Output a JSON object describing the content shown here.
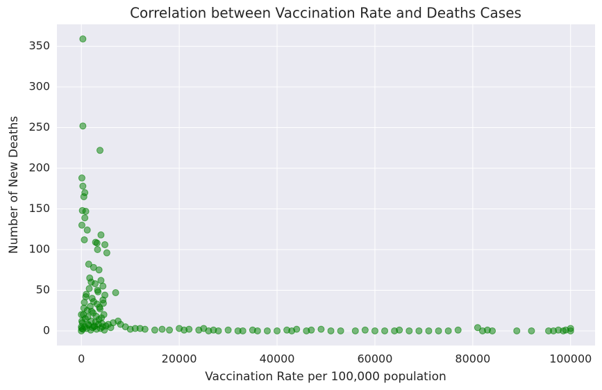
{
  "chart_data": {
    "type": "scatter",
    "title": "Correlation between Vaccination Rate and Deaths Cases",
    "x_label": "Vaccination Rate per 100,000 population",
    "y_label": "Number of New Deaths",
    "grid": true,
    "xlim": [
      -5000,
      105000
    ],
    "xticks": [
      0,
      20000,
      40000,
      60000,
      80000,
      100000
    ],
    "ylim": [
      -18,
      377
    ],
    "yticks": [
      0,
      50,
      100,
      150,
      200,
      250,
      300,
      350
    ],
    "series": [
      {
        "color": "#008000",
        "x": [
          300,
          300,
          3800,
          100,
          300,
          700,
          500,
          200,
          900,
          700,
          100,
          1200,
          4000,
          600,
          2900,
          3200,
          4800,
          5200,
          3300,
          1500,
          2500,
          3600,
          7000,
          2000,
          4400,
          200,
          400,
          600,
          800,
          1000,
          1200,
          1400,
          1600,
          1800,
          2000,
          2200,
          2400,
          2600,
          2800,
          3000,
          3200,
          3400,
          3600,
          3800,
          4000,
          4200,
          4400,
          4600,
          4800,
          5000,
          300,
          700,
          1100,
          1500,
          1900,
          2300,
          2700,
          3100,
          3500,
          3900,
          4300,
          4700,
          500,
          900,
          1300,
          1700,
          2100,
          2500,
          2900,
          3300,
          3700,
          4100,
          4500,
          0,
          0,
          100,
          0,
          50,
          5500,
          6000,
          6500,
          7500,
          8000,
          9000,
          10000,
          11000,
          12000,
          13000,
          15000,
          16500,
          18000,
          20000,
          21000,
          22000,
          24000,
          25000,
          26000,
          27000,
          28000,
          30000,
          32000,
          33000,
          35000,
          36000,
          38000,
          40000,
          42000,
          43000,
          44000,
          46000,
          47000,
          49000,
          51000,
          53000,
          56000,
          58000,
          60000,
          62000,
          64000,
          65000,
          67000,
          69000,
          71000,
          73000,
          75000,
          77000,
          81000,
          82000,
          83000,
          84000,
          89000,
          92000,
          95500,
          96500,
          97500,
          98500,
          99000,
          100000,
          100000
        ],
        "values": [
          359,
          252,
          222,
          188,
          178,
          170,
          165,
          148,
          147,
          139,
          130,
          124,
          118,
          112,
          109,
          108,
          106,
          96,
          100,
          82,
          78,
          75,
          47,
          60,
          55,
          10,
          20,
          35,
          15,
          45,
          25,
          8,
          52,
          30,
          12,
          40,
          22,
          5,
          58,
          18,
          33,
          48,
          14,
          27,
          62,
          9,
          38,
          20,
          44,
          6,
          2,
          5,
          3,
          7,
          1,
          4,
          6,
          2,
          8,
          3,
          5,
          1,
          28,
          42,
          17,
          65,
          24,
          36,
          11,
          50,
          29,
          16,
          34,
          0,
          5,
          12,
          20,
          3,
          8,
          4,
          10,
          12,
          8,
          5,
          2,
          3,
          3,
          2,
          1,
          2,
          1,
          3,
          1,
          2,
          1,
          3,
          0,
          1,
          0,
          1,
          0,
          0,
          1,
          0,
          0,
          0,
          1,
          0,
          2,
          0,
          1,
          2,
          0,
          0,
          0,
          1,
          0,
          0,
          0,
          1,
          0,
          0,
          0,
          0,
          0,
          1,
          4,
          0,
          1,
          0,
          0,
          0,
          0,
          0,
          1,
          0,
          1,
          3,
          0
        ]
      }
    ]
  }
}
